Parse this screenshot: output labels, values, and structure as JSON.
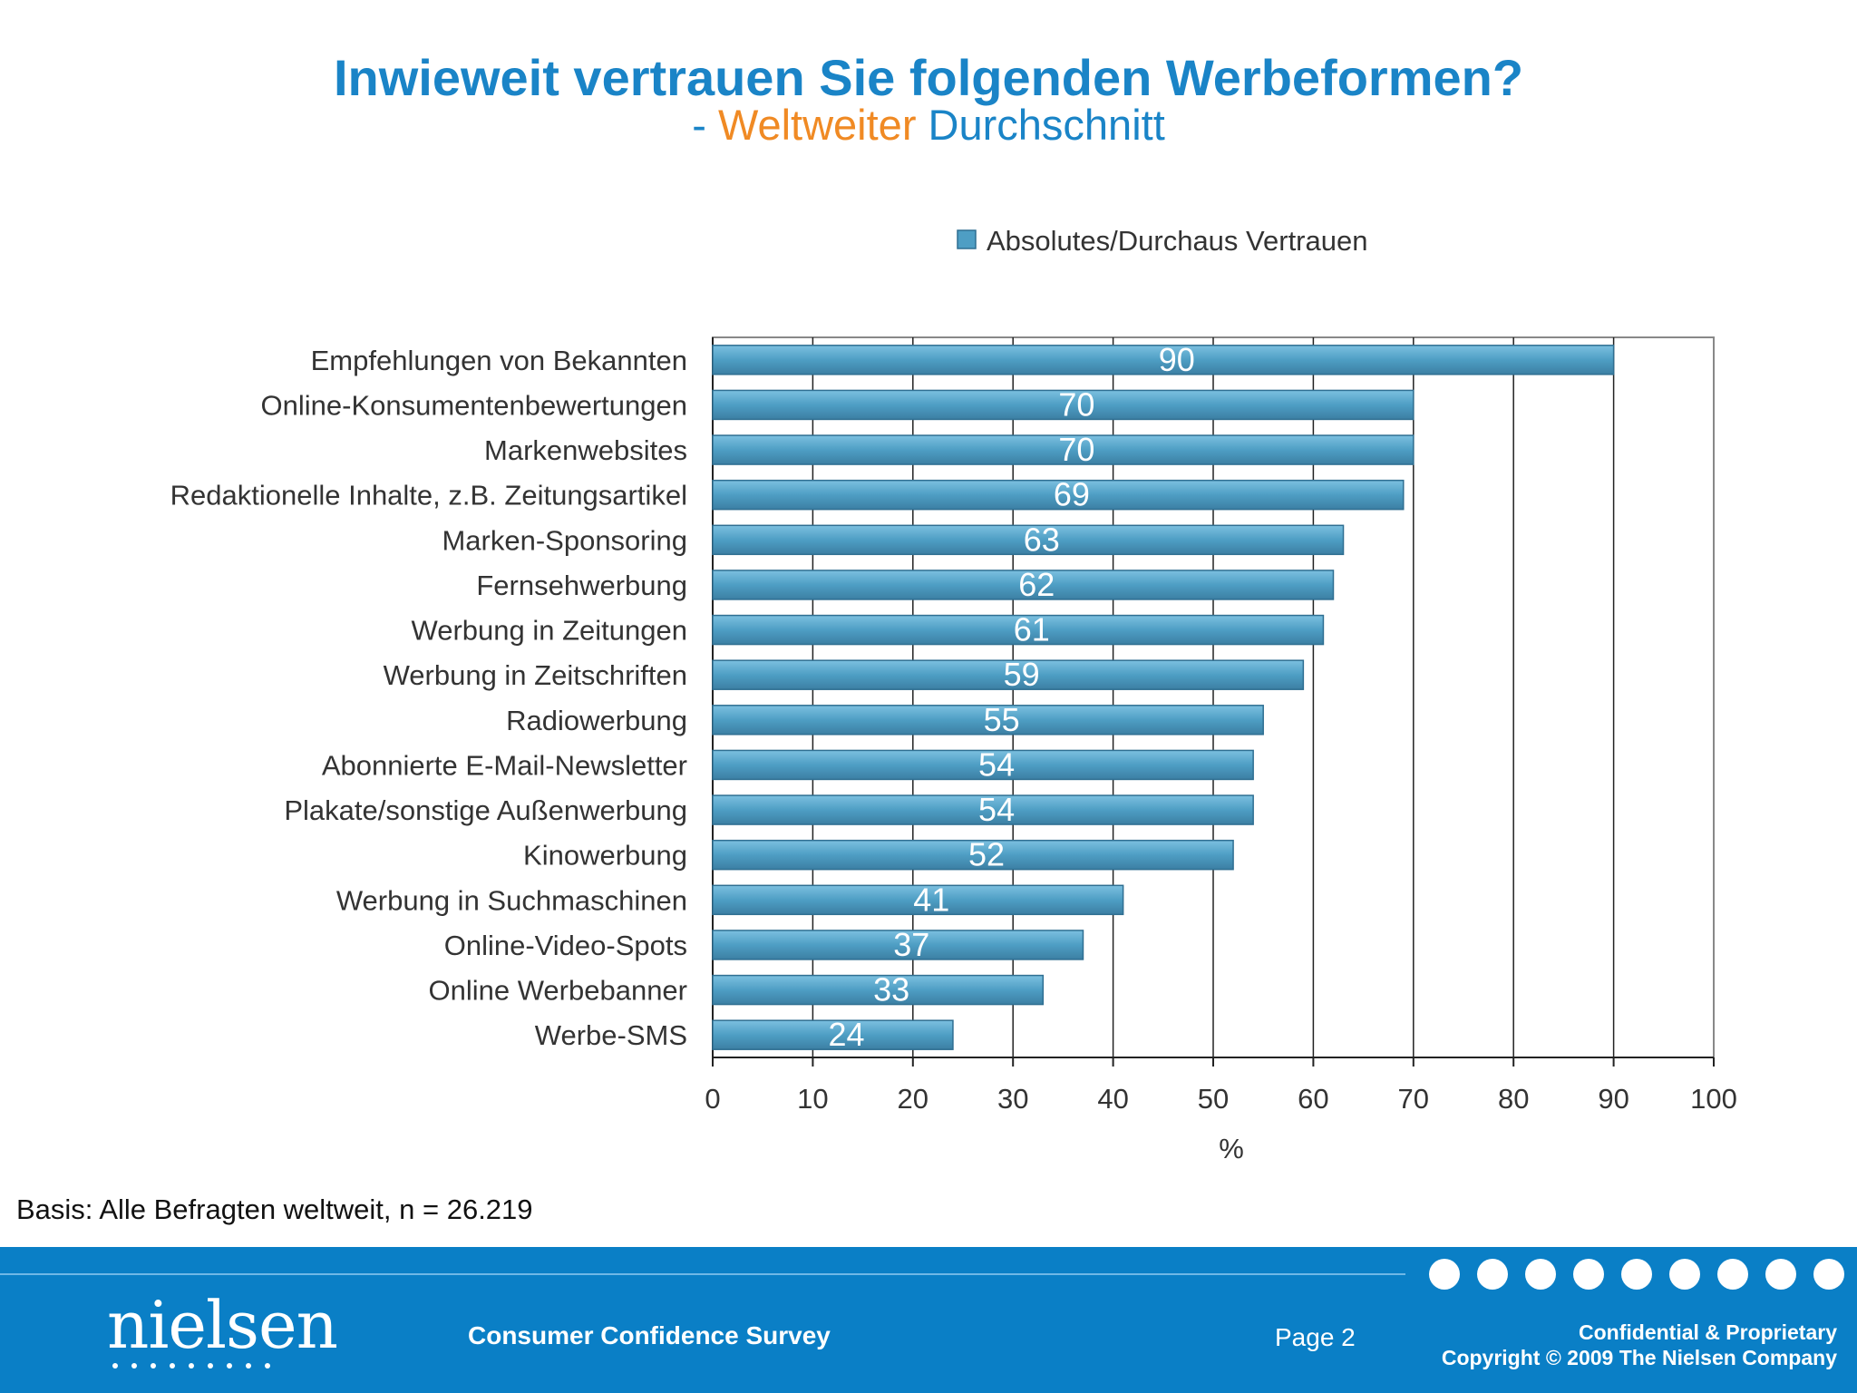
{
  "title": "Inwieweit vertrauen Sie folgenden Werbeformen?",
  "subtitle": {
    "prefix": "- ",
    "highlight": "Weltweiter",
    "rest": " Durchschnitt"
  },
  "footer": {
    "basis": "Basis: Alle Befragten weltweit, n = 26.219",
    "logo": "nielsen",
    "survey": "Consumer Confidence Survey",
    "page": "Page 2",
    "confidential": "Confidential & Proprietary",
    "copyright": "Copyright © 2009 The Nielsen Company"
  },
  "colors": {
    "title": "#1a84c7",
    "highlight": "#f08a24",
    "bar": "#4e9ec4",
    "footer": "#0a7fc6"
  },
  "chart_data": {
    "type": "bar",
    "orientation": "horizontal",
    "series_name": "Absolutes/Durchaus Vertrauen",
    "categories": [
      "Empfehlungen von Bekannten",
      "Online-Konsumentenbewertungen",
      "Markenwebsites",
      "Redaktionelle Inhalte, z.B. Zeitungsartikel",
      "Marken-Sponsoring",
      "Fernsehwerbung",
      "Werbung in Zeitungen",
      "Werbung in Zeitschriften",
      "Radiowerbung",
      "Abonnierte E-Mail-Newsletter",
      "Plakate/sonstige Außenwerbung",
      "Kinowerbung",
      "Werbung in Suchmaschinen",
      "Online-Video-Spots",
      "Online Werbebanner",
      "Werbe-SMS"
    ],
    "values": [
      90,
      70,
      70,
      69,
      63,
      62,
      61,
      59,
      55,
      54,
      54,
      52,
      41,
      37,
      33,
      24
    ],
    "xlabel": "%",
    "xlim": [
      0,
      100
    ],
    "xticks": [
      0,
      10,
      20,
      30,
      40,
      50,
      60,
      70,
      80,
      90,
      100
    ],
    "grid": true,
    "legend_position": "top-right"
  }
}
